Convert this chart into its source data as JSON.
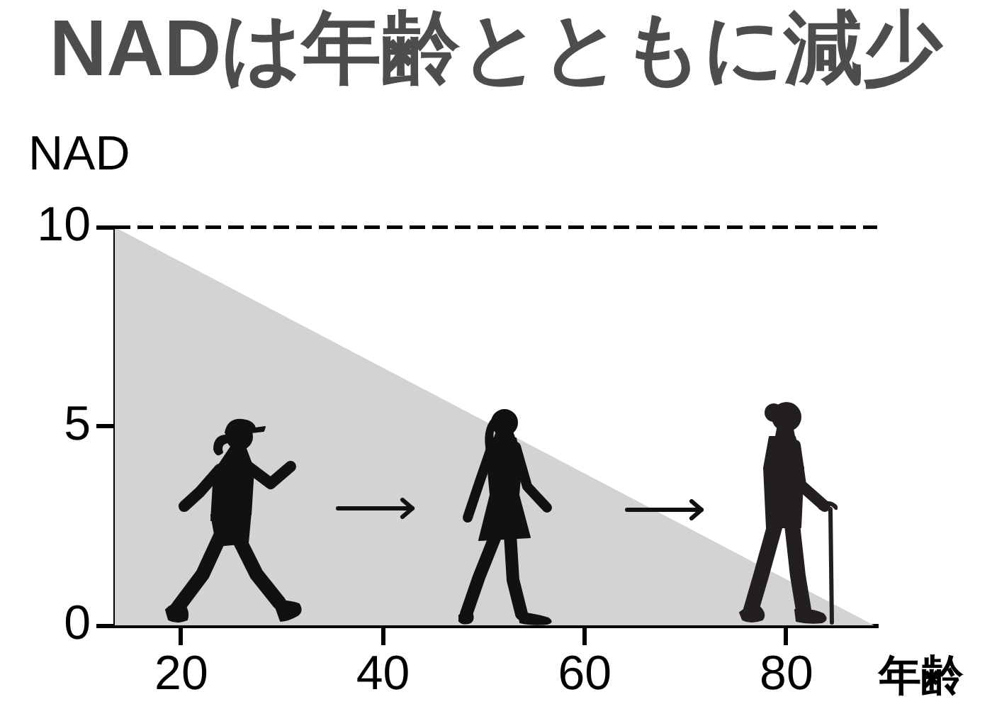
{
  "chart_data": {
    "type": "area",
    "title": "NADは年齢とともに減少",
    "xlabel": "年齢",
    "ylabel": "NAD",
    "x": [
      13.4,
      88.7
    ],
    "values": [
      10,
      0
    ],
    "color": "#d3d3d3",
    "xlim": [
      13.4,
      89
    ],
    "ylim": [
      0,
      10
    ],
    "xticks": [
      20,
      40,
      60,
      80
    ],
    "yticks": [
      0,
      5,
      10
    ],
    "ref_lines": [
      {
        "axis": "y",
        "value": 10,
        "color": "#000000",
        "line_style": "dashed"
      }
    ]
  }
}
